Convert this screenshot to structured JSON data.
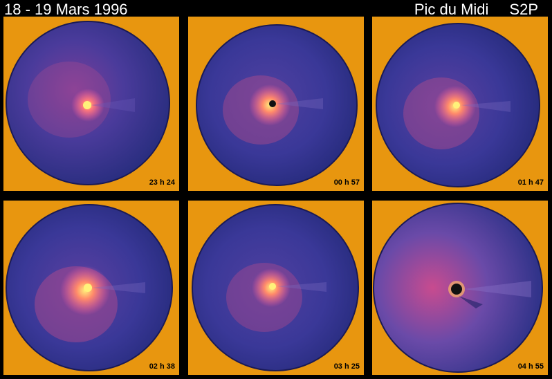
{
  "header": {
    "date_range": "18 - 19 Mars 1996",
    "observatory": "Pic du Midi",
    "instrument": "S2P"
  },
  "panels": [
    {
      "time": "23 h 24"
    },
    {
      "time": "00 h 57"
    },
    {
      "time": "01 h 47"
    },
    {
      "time": "02 h 38"
    },
    {
      "time": "03 h 25"
    },
    {
      "time": "04 h 55"
    }
  ],
  "colors": {
    "frame": "#E8960F",
    "disk": "#33338F",
    "disk_edge": "#1E1E60",
    "core": "#FFE26A",
    "coma": "#E0508A"
  }
}
